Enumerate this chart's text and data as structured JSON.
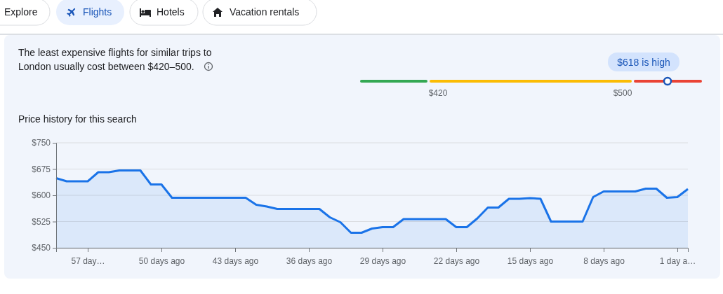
{
  "chart_data": [
    {
      "type": "other",
      "categories": [
        "Explore",
        "Flights",
        "Hotels",
        "Vacation rentals"
      ],
      "title": "The least expensive flights for similar trips to London usually cost between $420–500.",
      "annotations": [
        "$618 is high",
        "$420",
        "$500"
      ]
    },
    {
      "type": "area",
      "title": "Price history for this search",
      "x": [
        -60,
        -59,
        -58,
        -57,
        -56,
        -55,
        -54,
        -53,
        -52,
        -51,
        -50,
        -49,
        -48,
        -47,
        -46,
        -45,
        -44,
        -43,
        -42,
        -41,
        -40,
        -39,
        -38,
        -37,
        -36,
        -35,
        -34,
        -33,
        -32,
        -31,
        -30,
        -29,
        -28,
        -27,
        -26,
        -25,
        -24,
        -23,
        -22,
        -21,
        -20,
        -19,
        -18,
        -17,
        -16,
        -15,
        -14,
        -13,
        -12,
        -11,
        -10,
        -9,
        -8,
        -7,
        -6,
        -5,
        -4,
        -3,
        -2,
        -1,
        0
      ],
      "series": [
        {
          "color": "#1a73e8",
          "values": [
            649,
            640,
            640,
            640,
            666,
            666,
            671,
            671,
            671,
            631,
            631,
            593,
            593,
            593,
            593,
            593,
            593,
            593,
            593,
            573,
            568,
            561,
            561,
            561,
            561,
            561,
            537,
            523,
            493,
            493,
            505,
            509,
            509,
            532,
            532,
            532,
            532,
            532,
            509,
            509,
            534,
            565,
            565,
            590,
            590,
            592,
            590,
            525,
            525,
            525,
            525,
            595,
            611,
            611,
            611,
            611,
            619,
            619,
            593,
            595,
            618
          ]
        }
      ],
      "xlim": [
        -60,
        0
      ],
      "xticks": [
        {
          "value": -57,
          "label": "57 day…"
        },
        {
          "value": -50,
          "label": "50 days ago"
        },
        {
          "value": -43,
          "label": "43 days ago"
        },
        {
          "value": -36,
          "label": "36 days ago"
        },
        {
          "value": -29,
          "label": "29 days ago"
        },
        {
          "value": -22,
          "label": "22 days ago"
        },
        {
          "value": -15,
          "label": "15 days ago"
        },
        {
          "value": -8,
          "label": "8 days ago"
        },
        {
          "value": -1,
          "label": "1 day a…"
        }
      ],
      "ylim": [
        450,
        750
      ],
      "yticks": [
        {
          "value": 450,
          "label": "$450"
        },
        {
          "value": 525,
          "label": "$525"
        },
        {
          "value": 600,
          "label": "$600"
        },
        {
          "value": 675,
          "label": "$675"
        },
        {
          "value": 750,
          "label": "$750"
        }
      ],
      "grid": "y",
      "line_style": "solid",
      "marker": "none"
    }
  ]
}
